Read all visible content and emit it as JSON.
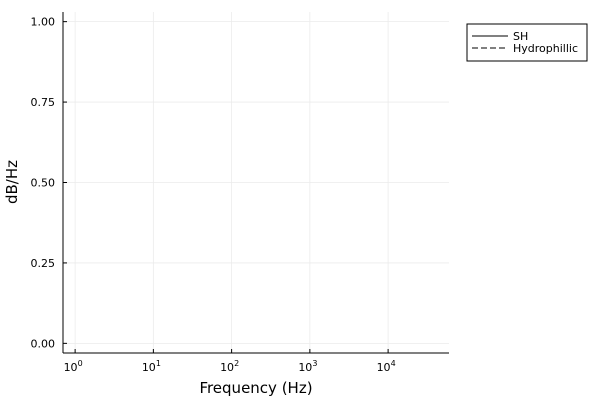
{
  "chart_data": {
    "type": "line",
    "xlabel": "Frequency (Hz)",
    "ylabel": "dB/Hz",
    "x_scale": "log",
    "xlim": [
      0.7,
      60000
    ],
    "ylim": [
      -0.03,
      1.03
    ],
    "x_ticks": [
      {
        "value": 1,
        "base": "10",
        "exp": "0"
      },
      {
        "value": 10,
        "base": "10",
        "exp": "1"
      },
      {
        "value": 100,
        "base": "10",
        "exp": "2"
      },
      {
        "value": 1000,
        "base": "10",
        "exp": "3"
      },
      {
        "value": 10000,
        "base": "10",
        "exp": "4"
      }
    ],
    "y_ticks": [
      {
        "value": 0,
        "label": "0.00"
      },
      {
        "value": 0.25,
        "label": "0.25"
      },
      {
        "value": 0.5,
        "label": "0.50"
      },
      {
        "value": 0.75,
        "label": "0.75"
      },
      {
        "value": 1,
        "label": "1.00"
      }
    ],
    "grid": true,
    "legend_position": "top-right outside",
    "series": [
      {
        "name": "SH",
        "style": "solid",
        "color": "#000000",
        "x": [],
        "y": []
      },
      {
        "name": "Hydrophillic",
        "style": "dashed",
        "color": "#000000",
        "x": [],
        "y": []
      }
    ]
  }
}
